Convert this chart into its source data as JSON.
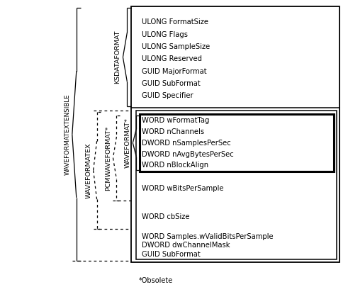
{
  "background_color": "#ffffff",
  "ksdataformat_fields": [
    "ULONG FormatSize",
    "ULONG Flags",
    "ULONG SampleSize",
    "ULONG Reserved",
    "GUID MajorFormat",
    "GUID SubFormat",
    "GUID Specifier"
  ],
  "waveformat_fields": [
    "WORD wFormatTag",
    "WORD nChannels",
    "DWORD nSamplesPerSec",
    "DWORD nAvgBytesPerSec",
    "WORD nBlockAlign"
  ],
  "pcmwaveformat_field": "WORD wBitsPerSample",
  "waveformatex_field": "WORD cbSize",
  "waveformatextensible_fields": [
    "WORD Samples.wValidBitsPerSample",
    "DWORD dwChannelMask",
    "GUID SubFormat"
  ],
  "label_ksdataformat": "KSDATAFORMAT",
  "label_waveformat": "WAVEFORMAT*",
  "label_pcmwaveformat": "PCMWAVEFORMAT*",
  "label_waveformatex": "WAVEFORMATEX",
  "label_waveformatextensible": "WAVEFORMATEXTENSIBLE",
  "label_obsolete": "*Obsolete",
  "text_font_size": 7.2,
  "label_font_size": 6.8
}
